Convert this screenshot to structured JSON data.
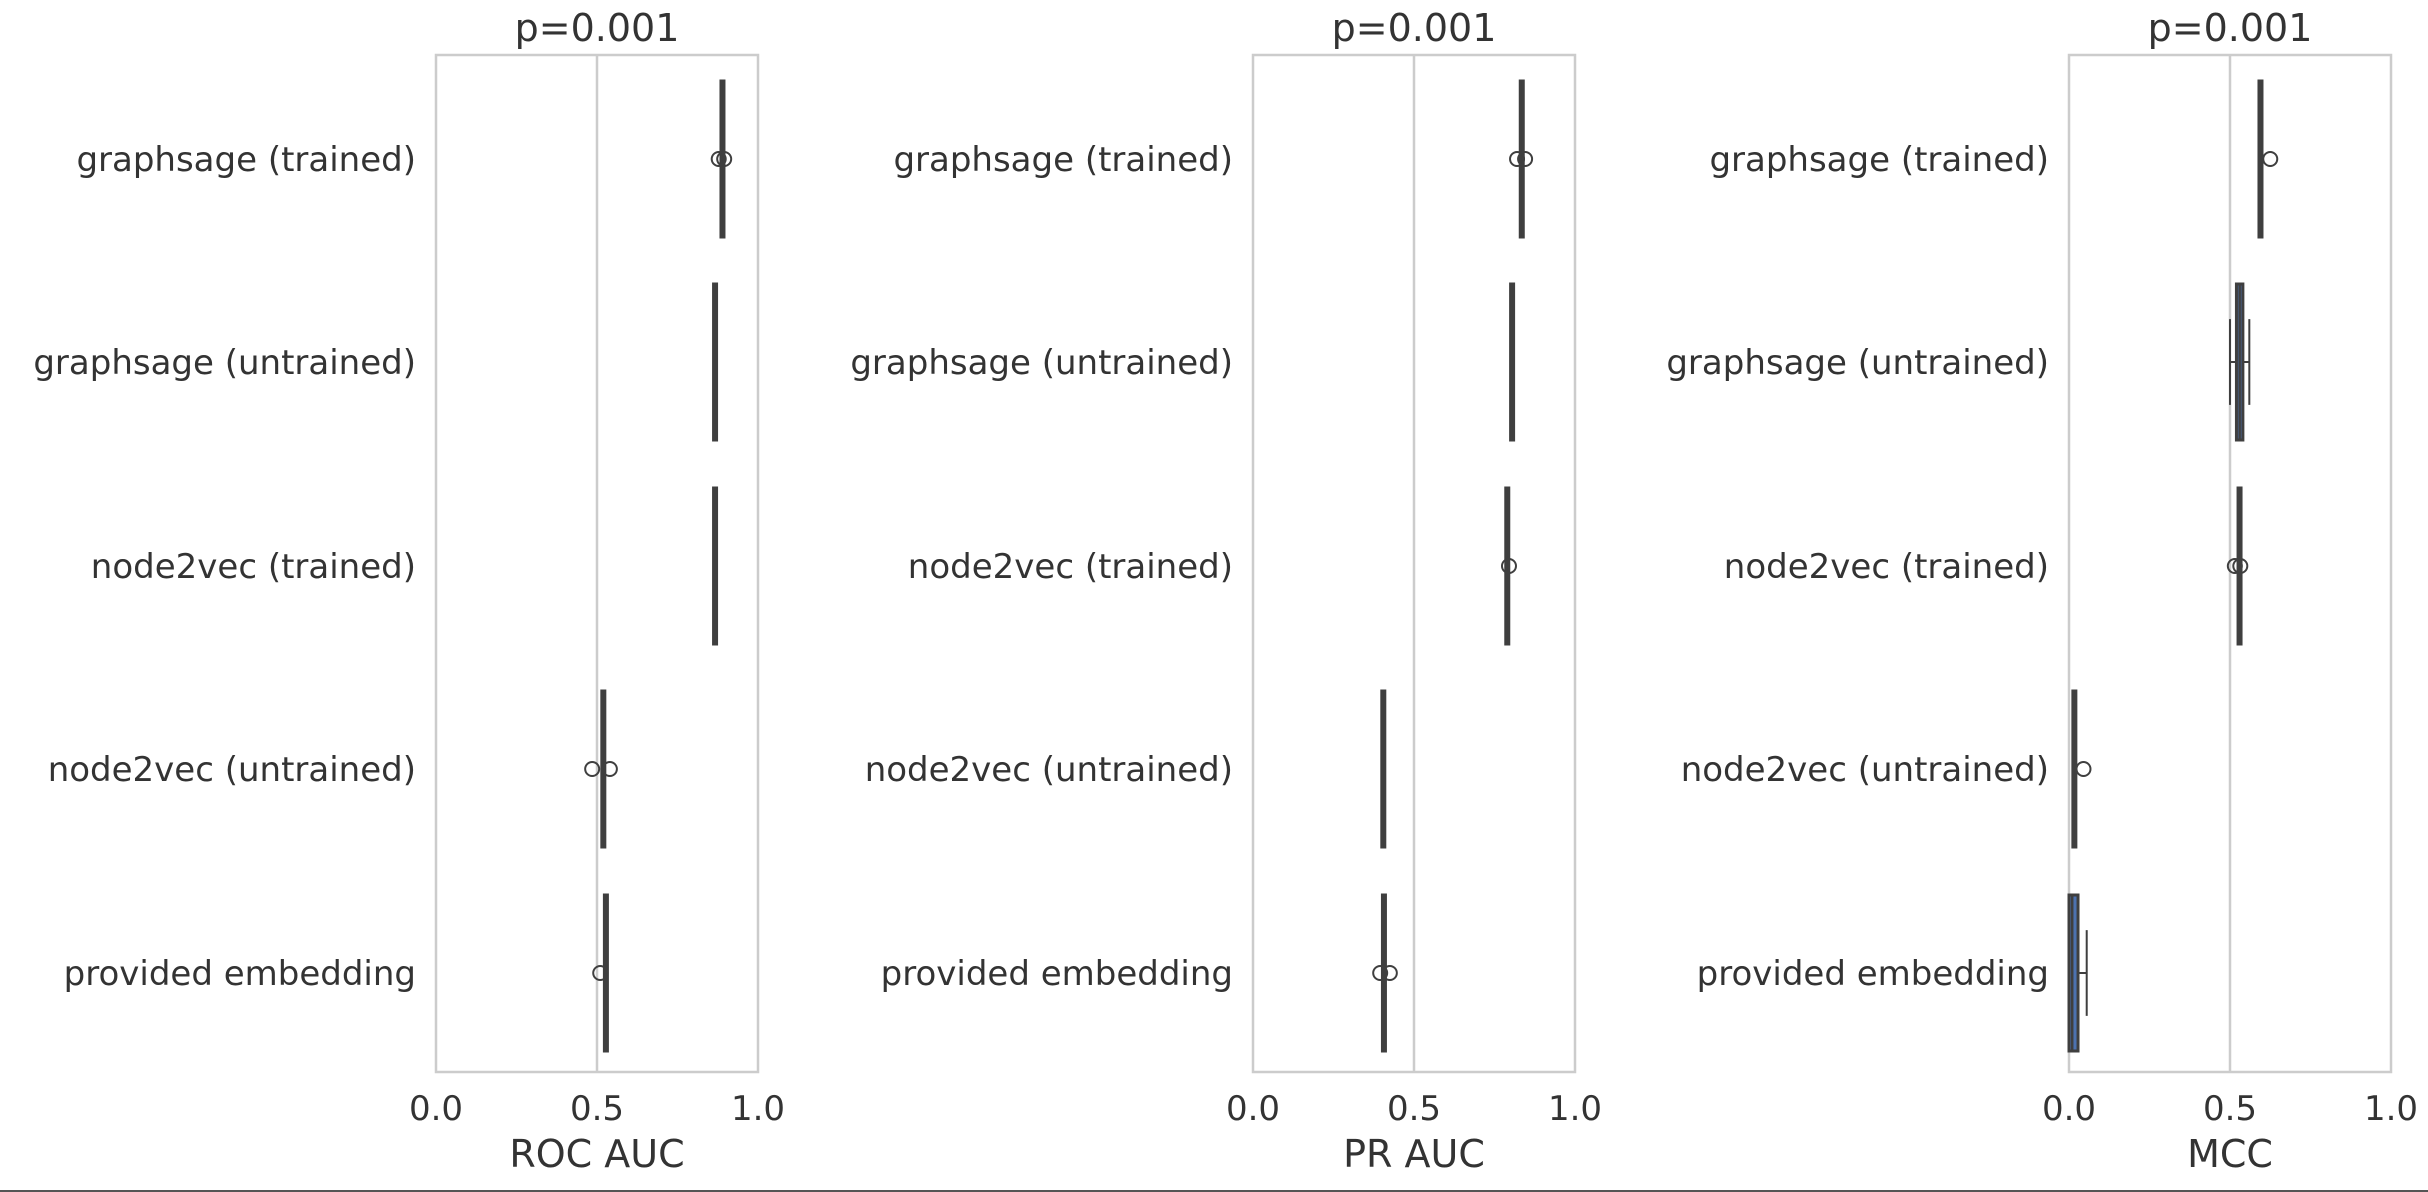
{
  "chart_data": [
    {
      "type": "boxplot",
      "title": "p=0.001",
      "xlabel": "ROC AUC",
      "ylabel": "",
      "xlim": [
        0,
        1
      ],
      "xticks": [
        "0.0",
        "0.5",
        "1.0"
      ],
      "reference_line": 0.5,
      "grid": false,
      "categories": [
        "graphsage (trained)",
        "graphsage (untrained)",
        "node2vec (trained)",
        "node2vec (untrained)",
        "provided embedding"
      ],
      "boxes": [
        {
          "whislo": 0.885,
          "q1": 0.885,
          "med": 0.887,
          "q3": 0.889,
          "whishi": 0.89,
          "fliers": [
            0.878,
            0.895
          ],
          "color": "#4c72b0"
        },
        {
          "whislo": 0.862,
          "q1": 0.862,
          "med": 0.864,
          "q3": 0.866,
          "whishi": 0.866,
          "fliers": [],
          "color": "#4c72b0"
        },
        {
          "whislo": 0.862,
          "q1": 0.862,
          "med": 0.865,
          "q3": 0.868,
          "whishi": 0.869,
          "fliers": [],
          "color": "#4c72b0"
        },
        {
          "whislo": 0.515,
          "q1": 0.515,
          "med": 0.516,
          "q3": 0.517,
          "whishi": 0.518,
          "fliers": [
            0.485,
            0.54
          ],
          "color": "#4c72b0"
        },
        {
          "whislo": 0.523,
          "q1": 0.523,
          "med": 0.524,
          "q3": 0.525,
          "whishi": 0.526,
          "fliers": [
            0.51
          ],
          "color": "#4c72b0"
        }
      ]
    },
    {
      "type": "boxplot",
      "title": "p=0.001",
      "xlabel": "PR AUC",
      "ylabel": "",
      "xlim": [
        0,
        1
      ],
      "xticks": [
        "0.0",
        "0.5",
        "1.0"
      ],
      "reference_line": 0.5,
      "grid": false,
      "categories": [
        "graphsage (trained)",
        "graphsage (untrained)",
        "node2vec (trained)",
        "node2vec (untrained)",
        "provided embedding"
      ],
      "boxes": [
        {
          "whislo": 0.83,
          "q1": 0.83,
          "med": 0.831,
          "q3": 0.833,
          "whishi": 0.834,
          "fliers": [
            0.82,
            0.845
          ],
          "color": "#4c72b0"
        },
        {
          "whislo": 0.8,
          "q1": 0.8,
          "med": 0.803,
          "q3": 0.806,
          "whishi": 0.807,
          "fliers": [],
          "color": "#4c72b0"
        },
        {
          "whislo": 0.785,
          "q1": 0.785,
          "med": 0.787,
          "q3": 0.789,
          "whishi": 0.79,
          "fliers": [
            0.795
          ],
          "color": "#4c72b0"
        },
        {
          "whislo": 0.4,
          "q1": 0.4,
          "med": 0.402,
          "q3": 0.405,
          "whishi": 0.407,
          "fliers": [],
          "color": "#4c72b0"
        },
        {
          "whislo": 0.402,
          "q1": 0.402,
          "med": 0.403,
          "q3": 0.404,
          "whishi": 0.405,
          "fliers": [
            0.395,
            0.425
          ],
          "color": "#4c72b0"
        }
      ]
    },
    {
      "type": "boxplot",
      "title": "p=0.001",
      "xlabel": "MCC",
      "ylabel": "",
      "xlim": [
        0,
        1
      ],
      "xticks": [
        "0.0",
        "0.5",
        "1.0"
      ],
      "reference_line": 0.5,
      "grid": false,
      "categories": [
        "graphsage (trained)",
        "graphsage (untrained)",
        "node2vec (trained)",
        "node2vec (untrained)",
        "provided embedding"
      ],
      "boxes": [
        {
          "whislo": 0.59,
          "q1": 0.59,
          "med": 0.593,
          "q3": 0.597,
          "whishi": 0.6,
          "fliers": [
            0.625
          ],
          "color": "#4c72b0"
        },
        {
          "whislo": 0.5,
          "q1": 0.52,
          "med": 0.53,
          "q3": 0.54,
          "whishi": 0.56,
          "fliers": [],
          "color": "#4c72b0"
        },
        {
          "whislo": 0.525,
          "q1": 0.525,
          "med": 0.526,
          "q3": 0.527,
          "whishi": 0.528,
          "fliers": [
            0.515,
            0.532
          ],
          "color": "#4c72b0"
        },
        {
          "whislo": 0.012,
          "q1": 0.012,
          "med": 0.014,
          "q3": 0.017,
          "whishi": 0.019,
          "fliers": [
            0.045
          ],
          "color": "#4c72b0"
        },
        {
          "whislo": 0.0,
          "q1": 0.0,
          "med": 0.01,
          "q3": 0.028,
          "whishi": 0.055,
          "fliers": [],
          "color": "#4c72b0"
        }
      ]
    }
  ]
}
